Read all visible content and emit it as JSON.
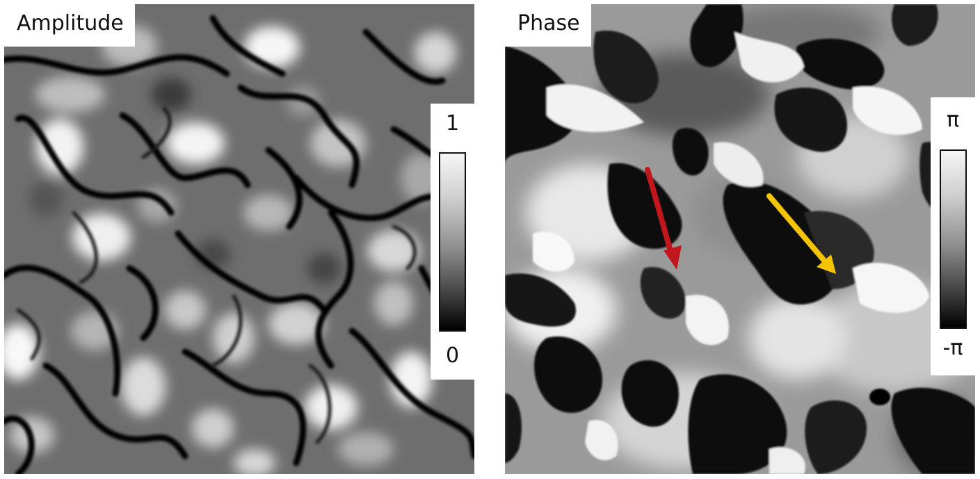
{
  "panels": {
    "amplitude": {
      "title": "Amplitude",
      "colorbar": {
        "max_label": "1",
        "min_label": "0"
      }
    },
    "phase": {
      "title": "Phase",
      "colorbar": {
        "max_label": "π",
        "min_label": "-π"
      },
      "annotations": [
        {
          "name": "red-arrow",
          "color": "#c0161c"
        },
        {
          "name": "yellow-arrow",
          "color": "#f5c400"
        }
      ]
    }
  },
  "colormap": "grayscale"
}
